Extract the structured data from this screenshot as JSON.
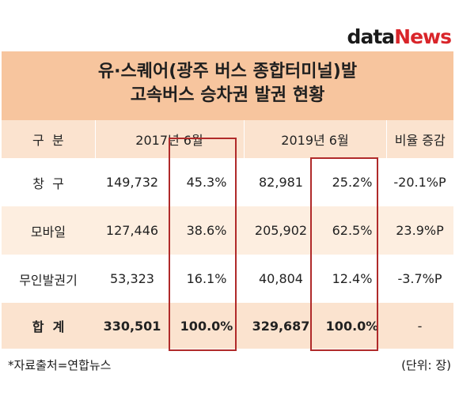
{
  "logo": {
    "part1": "data",
    "part2": "News"
  },
  "title": {
    "line1": "유·스퀘어(광주 버스 종합터미널)발",
    "line2": "고속버스 승차권 발권 현황"
  },
  "table": {
    "headers": [
      "구  분",
      "2017년 6월",
      "2019년 6월",
      "비율 증감"
    ],
    "rows": [
      {
        "label": "창  구",
        "v2017": "149,732",
        "p2017": "45.3%",
        "v2019": "82,981",
        "p2019": "25.2%",
        "change": "-20.1%P"
      },
      {
        "label": "모바일",
        "v2017": "127,446",
        "p2017": "38.6%",
        "v2019": "205,902",
        "p2019": "62.5%",
        "change": "23.9%P"
      },
      {
        "label": "무인발권기",
        "v2017": "53,323",
        "p2017": "16.1%",
        "v2019": "40,804",
        "p2019": "12.4%",
        "change": "-3.7%P"
      }
    ],
    "total": {
      "label": "합  계",
      "v2017": "330,501",
      "p2017": "100.0%",
      "v2019": "329,687",
      "p2019": "100.0%",
      "change": "-"
    }
  },
  "footer": {
    "source": "*자료출처=연합뉴스",
    "unit": "(단위: 장)"
  },
  "colors": {
    "title_bg": "#f7c59e",
    "header_bg": "#fbe3cf",
    "alt_row_bg": "#fdeee0",
    "highlight": "#b02a2a",
    "logo_accent": "#d9252a"
  }
}
